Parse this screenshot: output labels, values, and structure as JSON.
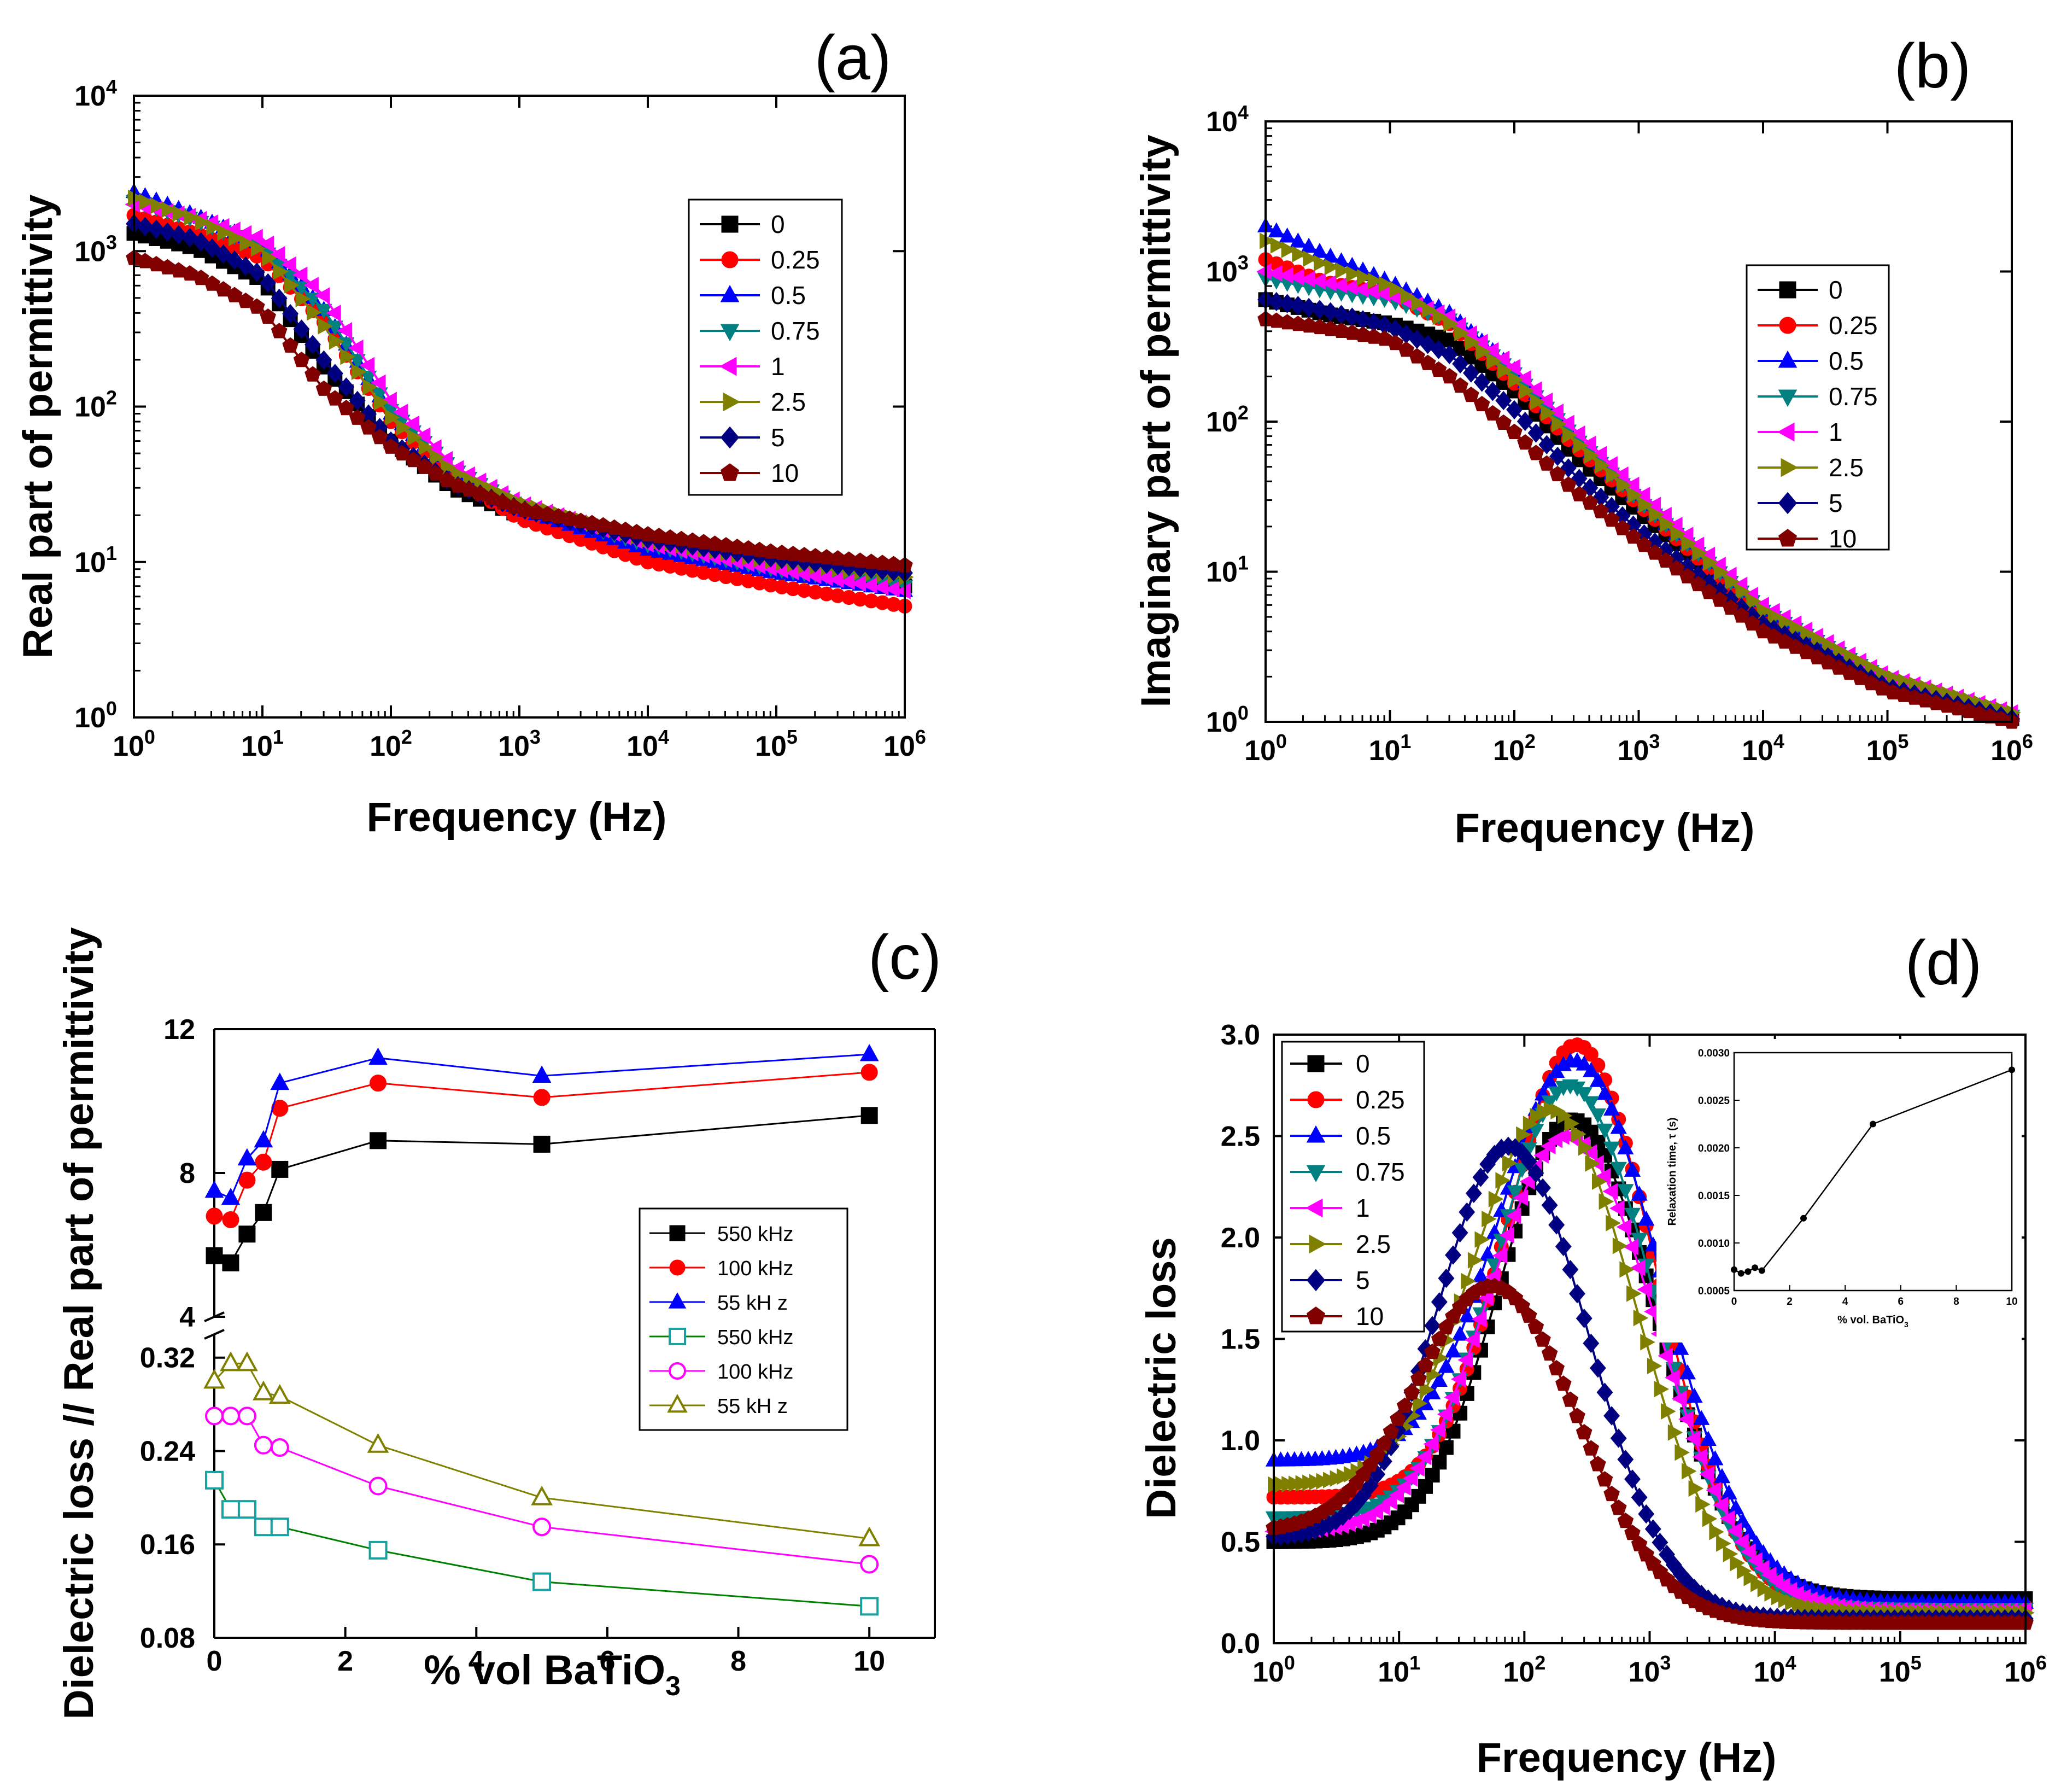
{
  "chart_data": [
    {
      "id": "a",
      "type": "line",
      "panel_label": "(a)",
      "title": "",
      "xlabel": "Frequency (Hz)",
      "ylabel": "Real part of permittivity",
      "xscale": "log",
      "yscale": "log",
      "xlim": [
        1,
        1000000
      ],
      "ylim": [
        1,
        10000
      ],
      "x_ticks": [
        "10^0",
        "10^1",
        "10^2",
        "10^3",
        "10^4",
        "10^5",
        "10^6"
      ],
      "y_ticks": [
        "10^0",
        "10^1",
        "10^2",
        "10^3",
        "10^4"
      ],
      "legend_position": "top-right",
      "series": [
        {
          "name": "0",
          "color": "#000000",
          "marker": "square",
          "x": [
            1,
            3,
            10,
            30,
            100,
            300,
            1000,
            10000,
            100000,
            1000000
          ],
          "values": [
            1300,
            1050,
            650,
            180,
            60,
            30,
            20,
            12,
            9,
            7
          ]
        },
        {
          "name": "0.25",
          "color": "#ff0000",
          "marker": "circle",
          "x": [
            1,
            3,
            10,
            30,
            100,
            300,
            1000,
            10000,
            100000,
            1000000
          ],
          "values": [
            1700,
            1300,
            900,
            350,
            80,
            35,
            19,
            10,
            7,
            5.2
          ]
        },
        {
          "name": "0.5",
          "color": "#0000ff",
          "marker": "triangle-up",
          "x": [
            1,
            3,
            10,
            30,
            100,
            300,
            1000,
            10000,
            100000,
            1000000
          ],
          "values": [
            2400,
            1700,
            1100,
            420,
            90,
            38,
            22,
            12,
            8.5,
            6.5
          ]
        },
        {
          "name": "0.75",
          "color": "#008080",
          "marker": "triangle-down",
          "x": [
            1,
            3,
            10,
            30,
            100,
            300,
            1000,
            10000,
            100000,
            1000000
          ],
          "values": [
            2100,
            1600,
            1050,
            420,
            95,
            40,
            23,
            13,
            9,
            7
          ]
        },
        {
          "name": "1",
          "color": "#ff00ff",
          "marker": "triangle-left",
          "x": [
            1,
            3,
            10,
            30,
            100,
            300,
            1000,
            10000,
            100000,
            1000000
          ],
          "values": [
            2000,
            1650,
            1200,
            520,
            110,
            42,
            24,
            13,
            9,
            6.5
          ]
        },
        {
          "name": "2.5",
          "color": "#808000",
          "marker": "triangle-right",
          "x": [
            1,
            3,
            10,
            30,
            100,
            300,
            1000,
            10000,
            100000,
            1000000
          ],
          "values": [
            2200,
            1600,
            1000,
            330,
            85,
            38,
            24,
            14,
            10,
            8
          ]
        },
        {
          "name": "5",
          "color": "#000080",
          "marker": "diamond",
          "x": [
            1,
            3,
            10,
            30,
            100,
            300,
            1000,
            10000,
            100000,
            1000000
          ],
          "values": [
            1500,
            1200,
            700,
            200,
            60,
            32,
            22,
            14,
            10.5,
            8.5
          ]
        },
        {
          "name": "10",
          "color": "#800000",
          "marker": "pentagon",
          "x": [
            1,
            3,
            10,
            30,
            100,
            300,
            1000,
            10000,
            100000,
            1000000
          ],
          "values": [
            900,
            700,
            420,
            130,
            55,
            32,
            22,
            15,
            11.5,
            9.5
          ]
        }
      ]
    },
    {
      "id": "b",
      "type": "line",
      "panel_label": "(b)",
      "title": "",
      "xlabel": "Frequency (Hz)",
      "ylabel": "Imaginary part of permittivity",
      "xscale": "log",
      "yscale": "log",
      "xlim": [
        1,
        1000000
      ],
      "ylim": [
        1,
        10000
      ],
      "x_ticks": [
        "10^0",
        "10^1",
        "10^2",
        "10^3",
        "10^4",
        "10^5",
        "10^6"
      ],
      "y_ticks": [
        "10^0",
        "10^1",
        "10^2",
        "10^3",
        "10^4"
      ],
      "legend_position": "top-right",
      "series": [
        {
          "name": "0",
          "color": "#000000",
          "marker": "square",
          "x": [
            1,
            3,
            10,
            30,
            100,
            300,
            1000,
            10000,
            100000,
            1000000
          ],
          "values": [
            650,
            520,
            450,
            350,
            160,
            60,
            25,
            5,
            1.8,
            1.05
          ]
        },
        {
          "name": "0.25",
          "color": "#ff0000",
          "marker": "circle",
          "x": [
            1,
            3,
            10,
            30,
            100,
            300,
            1000,
            10000,
            100000,
            1000000
          ],
          "values": [
            1200,
            850,
            700,
            450,
            180,
            70,
            28,
            5,
            1.8,
            1.05
          ]
        },
        {
          "name": "0.5",
          "color": "#0000ff",
          "marker": "triangle-up",
          "x": [
            1,
            3,
            10,
            30,
            100,
            300,
            1000,
            10000,
            100000,
            1000000
          ],
          "values": [
            2000,
            1300,
            850,
            530,
            220,
            80,
            30,
            5.5,
            1.9,
            1.1
          ]
        },
        {
          "name": "0.75",
          "color": "#008080",
          "marker": "triangle-down",
          "x": [
            1,
            3,
            10,
            30,
            100,
            300,
            1000,
            10000,
            100000,
            1000000
          ],
          "values": [
            900,
            750,
            650,
            480,
            210,
            80,
            30,
            5.5,
            1.9,
            1.1
          ]
        },
        {
          "name": "1",
          "color": "#ff00ff",
          "marker": "triangle-left",
          "x": [
            1,
            3,
            10,
            30,
            100,
            300,
            1000,
            10000,
            100000,
            1000000
          ],
          "values": [
            1000,
            850,
            700,
            500,
            230,
            90,
            35,
            6,
            2,
            1.15
          ]
        },
        {
          "name": "2.5",
          "color": "#808000",
          "marker": "triangle-right",
          "x": [
            1,
            3,
            10,
            30,
            100,
            300,
            1000,
            10000,
            100000,
            1000000
          ],
          "values": [
            1600,
            1100,
            800,
            450,
            190,
            75,
            30,
            5.5,
            2,
            1.15
          ]
        },
        {
          "name": "5",
          "color": "#000080",
          "marker": "diamond",
          "x": [
            1,
            3,
            10,
            30,
            100,
            300,
            1000,
            10000,
            100000,
            1000000
          ],
          "values": [
            650,
            550,
            430,
            280,
            120,
            45,
            19,
            4.5,
            1.7,
            1.05
          ]
        },
        {
          "name": "10",
          "color": "#800000",
          "marker": "pentagon",
          "x": [
            1,
            3,
            10,
            30,
            100,
            300,
            1000,
            10000,
            100000,
            1000000
          ],
          "values": [
            480,
            420,
            350,
            200,
            85,
            35,
            16,
            4,
            1.6,
            1.0
          ]
        }
      ]
    },
    {
      "id": "c",
      "type": "line",
      "panel_label": "(c)",
      "title": "",
      "xlabel": "% vol BaTiO",
      "xlabel_sub": "3",
      "ylabel": "Dielectric loss // Real part of permittivity",
      "xlim": [
        0,
        11
      ],
      "y_break": true,
      "ylim_upper": [
        4,
        12
      ],
      "ylim_lower": [
        0.08,
        0.34
      ],
      "x_ticks": [
        "0",
        "2",
        "4",
        "6",
        "8",
        "10"
      ],
      "y_ticks_upper": [
        "4",
        "8",
        "12"
      ],
      "y_ticks_lower": [
        "0.08",
        "0.16",
        "0.24",
        "0.32"
      ],
      "legend_position": "right",
      "x": [
        0,
        0.25,
        0.5,
        0.75,
        1,
        2.5,
        5,
        10
      ],
      "series": [
        {
          "name": "550 kHz",
          "group": "upper",
          "color": "#000000",
          "marker": "square",
          "filled": true,
          "values": [
            5.7,
            5.5,
            6.3,
            6.9,
            8.1,
            8.9,
            8.8,
            9.6
          ]
        },
        {
          "name": "100 kHz",
          "group": "upper",
          "color": "#ff0000",
          "marker": "circle",
          "filled": true,
          "values": [
            6.8,
            6.7,
            7.8,
            8.3,
            9.8,
            10.5,
            10.1,
            10.8
          ]
        },
        {
          "name": "55 kH z",
          "group": "upper",
          "color": "#0000ff",
          "marker": "triangle-up",
          "filled": true,
          "values": [
            7.5,
            7.3,
            8.4,
            8.9,
            10.5,
            11.2,
            10.7,
            11.3
          ]
        },
        {
          "name": "550 kHz",
          "group": "lower",
          "color": "#1aa0a0",
          "line_color": "#008000",
          "marker": "square",
          "filled": false,
          "values": [
            0.215,
            0.19,
            0.19,
            0.175,
            0.175,
            0.155,
            0.128,
            0.107
          ]
        },
        {
          "name": "100 kHz",
          "group": "lower",
          "color": "#ff00ff",
          "marker": "circle",
          "filled": false,
          "values": [
            0.27,
            0.27,
            0.27,
            0.245,
            0.243,
            0.21,
            0.175,
            0.143
          ]
        },
        {
          "name": "55 kH z",
          "group": "lower",
          "color": "#808000",
          "marker": "triangle-up",
          "filled": false,
          "values": [
            0.3,
            0.315,
            0.315,
            0.29,
            0.287,
            0.245,
            0.2,
            0.165
          ]
        }
      ]
    },
    {
      "id": "d",
      "type": "line",
      "panel_label": "(d)",
      "title": "",
      "xlabel": "Frequency (Hz)",
      "ylabel": "Dielectric loss",
      "xscale": "log",
      "xlim": [
        1,
        1000000
      ],
      "ylim": [
        0.0,
        3.0
      ],
      "x_ticks": [
        "10^0",
        "10^1",
        "10^2",
        "10^3",
        "10^4",
        "10^5",
        "10^6"
      ],
      "y_ticks": [
        "0.0",
        "0.5",
        "1.0",
        "1.5",
        "2.0",
        "2.5",
        "3.0"
      ],
      "legend_position": "top-left",
      "peaks": [
        {
          "name": "0",
          "color": "#000000",
          "marker": "square",
          "base": 0.5,
          "peak_f": 240,
          "peak": 2.58,
          "width": 0.58,
          "tail": 0.22
        },
        {
          "name": "0.25",
          "color": "#ff0000",
          "marker": "circle",
          "base": 0.72,
          "peak_f": 260,
          "peak": 2.95,
          "width": 0.55,
          "tail": 0.18
        },
        {
          "name": "0.5",
          "color": "#0000ff",
          "marker": "triangle-up",
          "base": 0.9,
          "peak_f": 250,
          "peak": 2.87,
          "width": 0.6,
          "tail": 0.2
        },
        {
          "name": "0.75",
          "color": "#008080",
          "marker": "triangle-down",
          "base": 0.62,
          "peak_f": 230,
          "peak": 2.75,
          "width": 0.58,
          "tail": 0.17
        },
        {
          "name": "1",
          "color": "#ff00ff",
          "marker": "triangle-left",
          "base": 0.55,
          "peak_f": 220,
          "peak": 2.5,
          "width": 0.62,
          "tail": 0.16
        },
        {
          "name": "2.5",
          "color": "#808000",
          "marker": "triangle-right",
          "base": 0.78,
          "peak_f": 160,
          "peak": 2.63,
          "width": 0.6,
          "tail": 0.15
        },
        {
          "name": "5",
          "color": "#000080",
          "marker": "diamond",
          "base": 0.52,
          "peak_f": 75,
          "peak": 2.45,
          "width": 0.55,
          "tail": 0.12
        },
        {
          "name": "10",
          "color": "#800000",
          "marker": "pentagon",
          "base": 0.55,
          "peak_f": 55,
          "peak": 1.76,
          "width": 0.6,
          "tail": 0.1
        }
      ],
      "inset": {
        "type": "line",
        "xlabel": "% vol. BaTiO",
        "xlabel_sub": "3",
        "ylabel": "Relaxation time, τ (s)",
        "xlim": [
          0,
          10
        ],
        "ylim": [
          0.0005,
          0.003
        ],
        "x_ticks": [
          "0",
          "2",
          "4",
          "6",
          "8",
          "10"
        ],
        "y_ticks": [
          "0.0005",
          "0.0010",
          "0.0015",
          "0.0020",
          "0.0025",
          "0.0030"
        ],
        "x": [
          0,
          0.25,
          0.5,
          0.75,
          1,
          2.5,
          5,
          10
        ],
        "values": [
          0.00072,
          0.00068,
          0.0007,
          0.00074,
          0.00071,
          0.00126,
          0.00225,
          0.00282
        ]
      }
    }
  ]
}
